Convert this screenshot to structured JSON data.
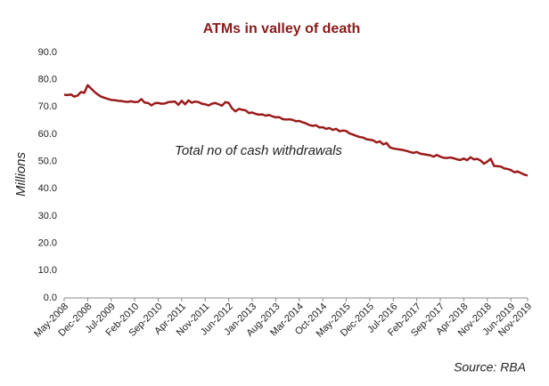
{
  "chart_data": {
    "type": "line",
    "title": "ATMs in valley of death",
    "ylabel": "Millions",
    "annotation": "Total no of cash withdrawals",
    "source": "Source: RBA",
    "categories": [
      "May-2008",
      null,
      null,
      null,
      null,
      null,
      null,
      "Dec-2008",
      null,
      null,
      null,
      null,
      null,
      null,
      "Jul-2009",
      null,
      null,
      null,
      null,
      null,
      null,
      "Feb-2010",
      null,
      null,
      null,
      null,
      null,
      null,
      "Sep-2010",
      null,
      null,
      null,
      null,
      null,
      null,
      "Apr-2011",
      null,
      null,
      null,
      null,
      null,
      null,
      "Nov-2011",
      null,
      null,
      null,
      null,
      null,
      null,
      "Jun-2012",
      null,
      null,
      null,
      null,
      null,
      null,
      "Jan-2013",
      null,
      null,
      null,
      null,
      null,
      null,
      "Aug-2013",
      null,
      null,
      null,
      null,
      null,
      null,
      "Mar-2014",
      null,
      null,
      null,
      null,
      null,
      null,
      "Oct-2014",
      null,
      null,
      null,
      null,
      null,
      null,
      "May-2015",
      null,
      null,
      null,
      null,
      null,
      null,
      "Dec-2015",
      null,
      null,
      null,
      null,
      null,
      null,
      "Jul-2016",
      null,
      null,
      null,
      null,
      null,
      null,
      "Feb-2017",
      null,
      null,
      null,
      null,
      null,
      null,
      "Sep-2017",
      null,
      null,
      null,
      null,
      null,
      null,
      "Apr-2018",
      null,
      null,
      null,
      null,
      null,
      null,
      "Nov-2018",
      null,
      null,
      null,
      null,
      null,
      null,
      "Jun-2019",
      null,
      null,
      null,
      null,
      "Nov-2019"
    ],
    "series": [
      {
        "name": "Total no of cash withdrawals",
        "color": "#9b1b1b",
        "values": [
          74.5,
          74.4,
          74.6,
          73.8,
          74.2,
          75.5,
          75.2,
          78.0,
          76.8,
          75.6,
          74.6,
          73.8,
          73.4,
          73.0,
          72.6,
          72.5,
          72.3,
          72.2,
          72.0,
          71.9,
          72.1,
          71.8,
          71.9,
          72.9,
          71.6,
          71.5,
          70.6,
          71.4,
          71.5,
          71.2,
          71.3,
          71.8,
          71.9,
          72.0,
          70.8,
          72.3,
          71.0,
          72.4,
          71.6,
          72.0,
          71.8,
          71.2,
          71.0,
          70.6,
          71.2,
          71.5,
          71.0,
          70.5,
          71.8,
          71.5,
          69.5,
          68.4,
          69.3,
          69.0,
          68.8,
          67.8,
          68.0,
          67.5,
          67.2,
          67.3,
          66.8,
          67.1,
          66.6,
          66.2,
          66.3,
          65.6,
          65.4,
          65.5,
          65.3,
          64.8,
          64.9,
          64.4,
          64.0,
          63.4,
          63.1,
          63.3,
          62.5,
          62.6,
          62.0,
          62.3,
          61.6,
          62.0,
          61.1,
          61.4,
          61.2,
          60.3,
          59.9,
          59.4,
          59.0,
          58.8,
          58.2,
          58.0,
          57.8,
          57.0,
          57.4,
          56.3,
          56.8,
          55.2,
          54.8,
          54.6,
          54.4,
          54.2,
          53.9,
          53.5,
          53.2,
          53.5,
          52.9,
          52.7,
          52.5,
          52.3,
          51.8,
          52.4,
          51.8,
          51.4,
          51.3,
          51.5,
          51.2,
          50.8,
          50.6,
          51.1,
          50.5,
          51.6,
          50.8,
          51.0,
          50.4,
          49.2,
          50.0,
          51.0,
          48.4,
          48.3,
          48.2,
          47.5,
          47.3,
          46.9,
          46.1,
          46.4,
          45.8,
          45.2,
          44.9
        ]
      }
    ],
    "ylim": [
      0,
      90
    ],
    "yticks": [
      {
        "value": 0,
        "label": "0.0"
      },
      {
        "value": 10,
        "label": "10.0"
      },
      {
        "value": 20,
        "label": "20.0"
      },
      {
        "value": 30,
        "label": "30.0"
      },
      {
        "value": 40,
        "label": "40.0"
      },
      {
        "value": 50,
        "label": "50.0"
      },
      {
        "value": 60,
        "label": "60.0"
      },
      {
        "value": 70,
        "label": "70.0"
      },
      {
        "value": 80,
        "label": "80.0"
      },
      {
        "value": 90,
        "label": "90.0"
      }
    ],
    "grid": false
  }
}
